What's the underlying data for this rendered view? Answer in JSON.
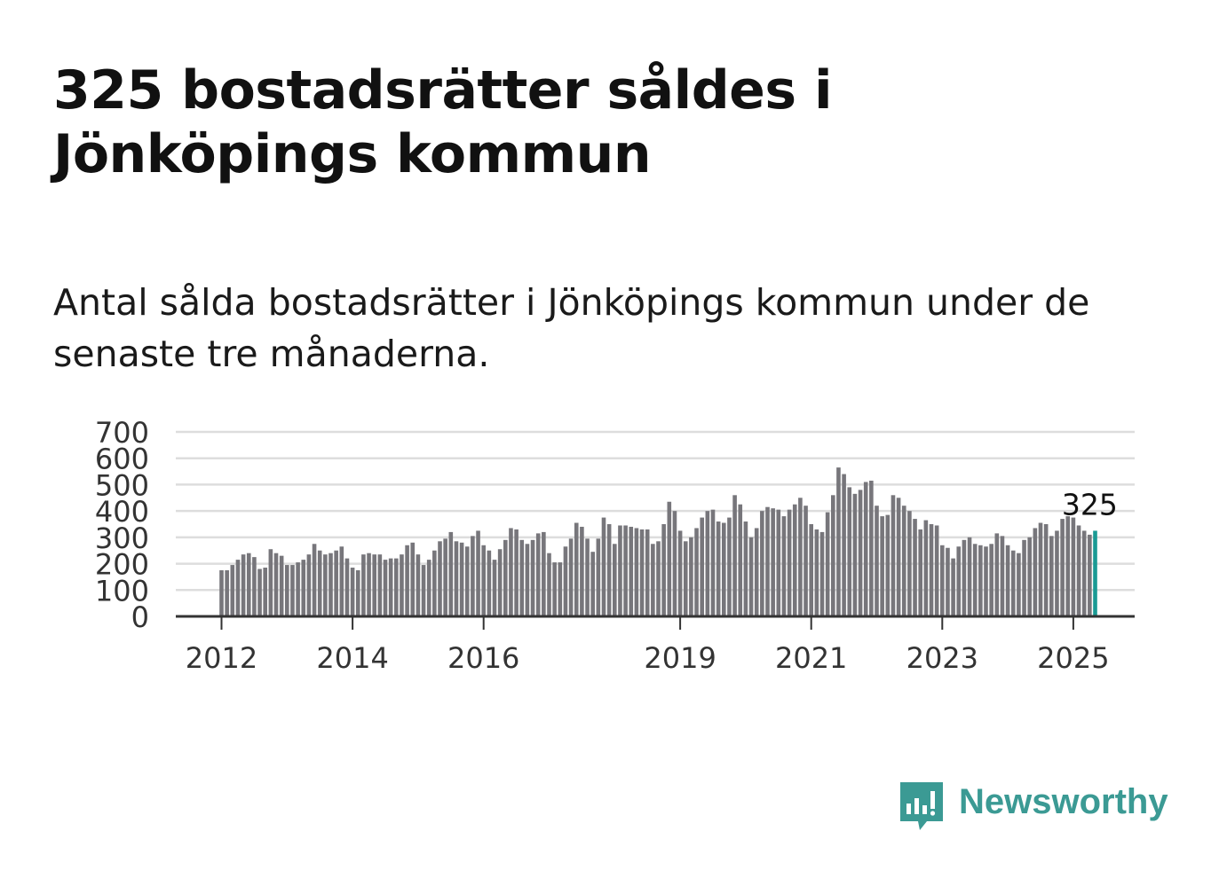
{
  "title": "325 bostadsrätter såldes i Jönköpings kommun",
  "subtitle": "Antal sålda bostadsrätter i Jönköpings kommun under de senaste tre månaderna.",
  "brand": {
    "name": "Newsworthy",
    "color": "#3b9a94",
    "icon": "newsworthy-logo-icon"
  },
  "colors": {
    "bar": "#77767b",
    "highlight": "#1a9a94",
    "grid": "#dddddd",
    "axis": "#333333"
  },
  "chart_data": {
    "type": "bar",
    "x_start": "2012-01",
    "x_end": "2025-04",
    "ylim": [
      0,
      700
    ],
    "yticks": [
      "0",
      "100",
      "200",
      "300",
      "400",
      "500",
      "600",
      "700"
    ],
    "xticks": [
      {
        "label": "2012",
        "month": "2012-01"
      },
      {
        "label": "2014",
        "month": "2014-01"
      },
      {
        "label": "2016",
        "month": "2016-01"
      },
      {
        "label": "2019",
        "month": "2019-01"
      },
      {
        "label": "2021",
        "month": "2021-01"
      },
      {
        "label": "2023",
        "month": "2023-01"
      },
      {
        "label": "2025",
        "month": "2025-01"
      }
    ],
    "annotation": {
      "label": "325",
      "month": "2025-04",
      "value": 325
    },
    "values": [
      175,
      175,
      195,
      215,
      235,
      240,
      225,
      180,
      185,
      255,
      240,
      230,
      195,
      195,
      205,
      215,
      235,
      275,
      250,
      235,
      240,
      250,
      265,
      220,
      185,
      175,
      235,
      240,
      235,
      235,
      215,
      220,
      220,
      235,
      270,
      280,
      235,
      195,
      215,
      250,
      285,
      295,
      320,
      285,
      280,
      265,
      305,
      325,
      270,
      250,
      215,
      255,
      290,
      335,
      330,
      290,
      275,
      290,
      315,
      320,
      240,
      205,
      205,
      265,
      295,
      355,
      340,
      295,
      245,
      295,
      375,
      350,
      275,
      345,
      345,
      340,
      335,
      330,
      330,
      275,
      285,
      350,
      435,
      400,
      325,
      285,
      300,
      335,
      375,
      400,
      405,
      360,
      355,
      375,
      460,
      425,
      360,
      300,
      335,
      400,
      415,
      410,
      405,
      380,
      405,
      425,
      450,
      420,
      350,
      330,
      320,
      395,
      460,
      565,
      540,
      490,
      465,
      480,
      510,
      515,
      420,
      380,
      385,
      460,
      450,
      420,
      400,
      370,
      330,
      365,
      350,
      345,
      270,
      260,
      220,
      265,
      290,
      300,
      275,
      270,
      265,
      275,
      315,
      305,
      270,
      250,
      240,
      290,
      300,
      335,
      355,
      350,
      305,
      325,
      370,
      380,
      375,
      345,
      325,
      310,
      325
    ]
  }
}
